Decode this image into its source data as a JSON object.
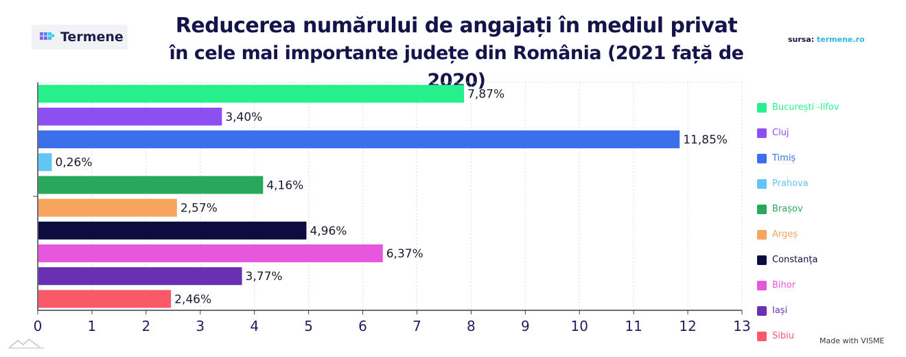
{
  "header": {
    "brand": "Termene",
    "title_line1": "Reducerea numărului de angajați în mediul privat",
    "title_line2": "în cele mai importante județe din România (2021 față de 2020)",
    "source_label": "sursa:",
    "source_value": "termene.ro"
  },
  "footer": {
    "made_with": "Made with VISME"
  },
  "chart_data": {
    "type": "bar",
    "orientation": "horizontal",
    "title": "Reducerea numărului de angajați în mediul privat în cele mai importante județe din România (2021 față de 2020)",
    "xlim": [
      0,
      13
    ],
    "x_ticks": [
      "0",
      "1",
      "2",
      "3",
      "4",
      "5",
      "6",
      "7",
      "8",
      "9",
      "10",
      "11",
      "12",
      "13"
    ],
    "grid": true,
    "legend_position": "right",
    "categories": [
      "București -Ilfov",
      "Cluj",
      "Timiș",
      "Prahova",
      "Brașov",
      "Argeș",
      "Constanța",
      "Bihor",
      "Iași",
      "Sibiu"
    ],
    "values": [
      7.87,
      3.4,
      11.85,
      0.26,
      4.16,
      2.57,
      4.96,
      6.37,
      3.77,
      2.46
    ],
    "value_labels": [
      "7,87%",
      "3,40%",
      "11,85%",
      "0,26%",
      "4,16%",
      "2,57%",
      "4,96%",
      "6,37%",
      "3,77%",
      "2,46%"
    ],
    "colors": [
      "#27ef8b",
      "#8e4ff2",
      "#3c70ea",
      "#62c6f5",
      "#29a75a",
      "#f7a45e",
      "#0c0c3e",
      "#e657dd",
      "#6a30b3",
      "#fa5967"
    ]
  }
}
